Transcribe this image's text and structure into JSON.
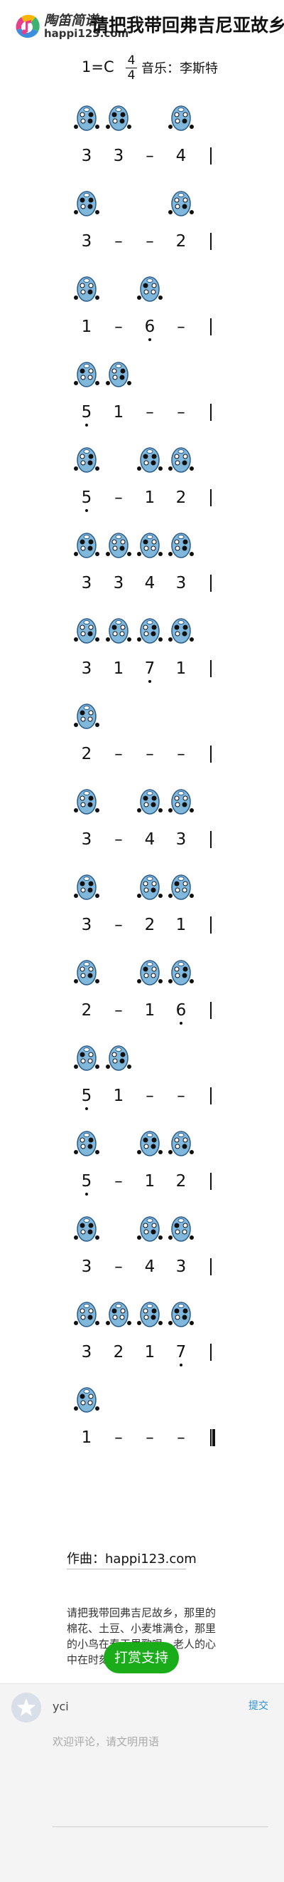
{
  "header": {
    "brand_cn": "陶笛简谱",
    "brand_url": "happi123.com",
    "song_title": "请把我带回弗吉尼亚故乡"
  },
  "meta": {
    "key": "1=C",
    "time_num": "4",
    "time_den": "4",
    "lyricist": "音乐：李斯特"
  },
  "score": [
    {
      "icons": [
        1,
        2,
        4
      ],
      "notes": [
        {
          "t": "3"
        },
        {
          "t": "3"
        },
        {
          "t": "–"
        },
        {
          "t": "4"
        }
      ],
      "end": false
    },
    {
      "icons": [
        1,
        4
      ],
      "notes": [
        {
          "t": "3"
        },
        {
          "t": "–"
        },
        {
          "t": "–"
        },
        {
          "t": "2"
        }
      ],
      "end": false
    },
    {
      "icons": [
        1,
        3
      ],
      "notes": [
        {
          "t": "1"
        },
        {
          "t": "–"
        },
        {
          "t": "6",
          "below": true
        },
        {
          "t": "–"
        }
      ],
      "end": false
    },
    {
      "icons": [
        1,
        2
      ],
      "notes": [
        {
          "t": "5",
          "below": true
        },
        {
          "t": "1"
        },
        {
          "t": "–"
        },
        {
          "t": "–"
        }
      ],
      "end": false
    },
    {
      "icons": [
        1,
        3,
        4
      ],
      "notes": [
        {
          "t": "5",
          "below": true
        },
        {
          "t": "–"
        },
        {
          "t": "1"
        },
        {
          "t": "2"
        }
      ],
      "end": false
    },
    {
      "icons": [
        1,
        2,
        3,
        4
      ],
      "notes": [
        {
          "t": "3"
        },
        {
          "t": "3"
        },
        {
          "t": "4"
        },
        {
          "t": "3"
        }
      ],
      "end": false
    },
    {
      "icons": [
        1,
        2,
        3,
        4
      ],
      "notes": [
        {
          "t": "3"
        },
        {
          "t": "1"
        },
        {
          "t": "7",
          "below": true
        },
        {
          "t": "1"
        }
      ],
      "end": false
    },
    {
      "icons": [
        1
      ],
      "notes": [
        {
          "t": "2"
        },
        {
          "t": "–"
        },
        {
          "t": "–"
        },
        {
          "t": "–"
        }
      ],
      "end": false
    },
    {
      "icons": [
        1,
        3,
        4
      ],
      "notes": [
        {
          "t": "3"
        },
        {
          "t": "–"
        },
        {
          "t": "4"
        },
        {
          "t": "3"
        }
      ],
      "end": false
    },
    {
      "icons": [
        1,
        3,
        4
      ],
      "notes": [
        {
          "t": "3"
        },
        {
          "t": "–"
        },
        {
          "t": "2"
        },
        {
          "t": "1"
        }
      ],
      "end": false
    },
    {
      "icons": [
        1,
        3,
        4
      ],
      "notes": [
        {
          "t": "2"
        },
        {
          "t": "–"
        },
        {
          "t": "1"
        },
        {
          "t": "6",
          "below": true
        }
      ],
      "end": false
    },
    {
      "icons": [
        1,
        2
      ],
      "notes": [
        {
          "t": "5",
          "below": true
        },
        {
          "t": "1"
        },
        {
          "t": "–"
        },
        {
          "t": "–"
        }
      ],
      "end": false
    },
    {
      "icons": [
        1,
        3,
        4
      ],
      "notes": [
        {
          "t": "5",
          "below": true
        },
        {
          "t": "–"
        },
        {
          "t": "1"
        },
        {
          "t": "2"
        }
      ],
      "end": false
    },
    {
      "icons": [
        1,
        3,
        4
      ],
      "notes": [
        {
          "t": "3"
        },
        {
          "t": "–"
        },
        {
          "t": "4"
        },
        {
          "t": "3"
        }
      ],
      "end": false
    },
    {
      "icons": [
        1,
        2,
        3,
        4
      ],
      "notes": [
        {
          "t": "3"
        },
        {
          "t": "2"
        },
        {
          "t": "1"
        },
        {
          "t": "7",
          "below": true
        }
      ],
      "end": false
    },
    {
      "icons": [
        1
      ],
      "notes": [
        {
          "t": "1"
        },
        {
          "t": "–"
        },
        {
          "t": "–"
        },
        {
          "t": "–"
        }
      ],
      "end": true
    }
  ],
  "author": "作曲：happi123.com",
  "description": "请把我带回弗吉尼故乡，那里的棉花、土豆、小麦堆满仓，那里的小鸟在春天里歌唱，老人的心中在时刻向往。",
  "reward_label": "打赏支持",
  "comment": {
    "username": "yci",
    "submit_label": "提交",
    "placeholder": "欢迎评论，请文明用语"
  },
  "colors": {
    "ocarina_body": "#7fb7dd",
    "ocarina_outline": "#2a5a86",
    "reward_green": "#1aad19",
    "link_blue": "#2a8fd8"
  }
}
